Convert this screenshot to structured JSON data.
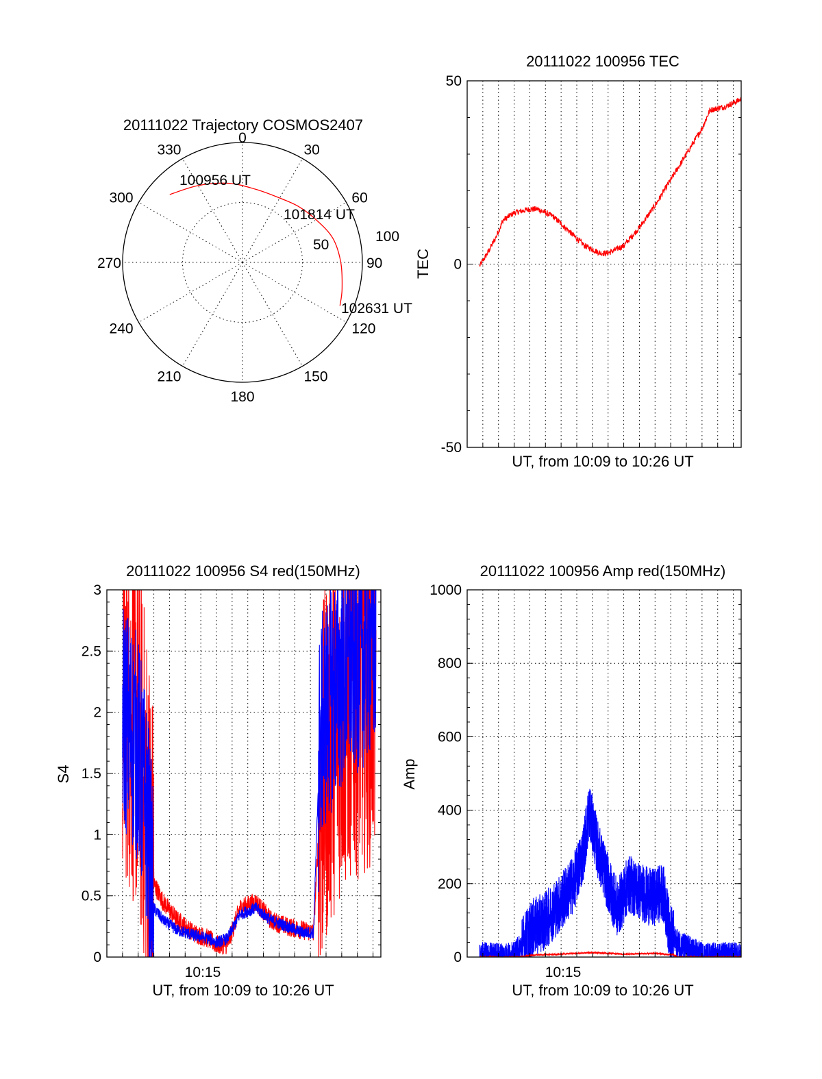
{
  "chart_data": [
    {
      "type": "polar",
      "title": "20111022 Trajectory COSMOS2407",
      "azimuth_labels": [
        "0",
        "30",
        "60",
        "90",
        "120",
        "150",
        "180",
        "210",
        "240",
        "270",
        "300",
        "330"
      ],
      "radius_labels": [
        "50",
        "100"
      ],
      "colors": {
        "track": "#ff0000"
      },
      "track": {
        "points": [
          {
            "az": 313,
            "zenith": 83
          },
          {
            "az": 330,
            "zenith": 74
          },
          {
            "az": 350,
            "zenith": 67
          },
          {
            "az": 10,
            "zenith": 62
          },
          {
            "az": 30,
            "zenith": 62
          },
          {
            "az": 45,
            "zenith": 66
          },
          {
            "az": 60,
            "zenith": 71
          },
          {
            "az": 75,
            "zenith": 78
          },
          {
            "az": 90,
            "zenith": 82
          },
          {
            "az": 105,
            "zenith": 86
          },
          {
            "az": 114,
            "zenith": 89
          }
        ],
        "annotations": [
          {
            "text": "100956 UT",
            "point": "start"
          },
          {
            "text": "101814 UT",
            "point": "middle"
          },
          {
            "text": "102631 UT",
            "point": "end"
          }
        ]
      }
    },
    {
      "type": "line",
      "title": "20111022 100956 TEC",
      "xlabel": "UT, from 10:09 to 10:26 UT",
      "ylabel": "TEC",
      "ylim": [
        -50,
        50
      ],
      "yticks": [
        "-50",
        "0",
        "50"
      ],
      "xlim_minutes": [
        9.0,
        26.5
      ],
      "grid": true,
      "series": [
        {
          "color": "#ff0000",
          "noise": 0.8,
          "x": [
            9.8,
            10.3,
            10.8,
            11.3,
            12.0,
            13.0,
            13.5,
            14.5,
            15.5,
            16.5,
            17.5,
            18.0,
            19.0,
            20.0,
            21.0,
            22.0,
            23.0,
            24.0,
            24.5,
            25.5,
            26.5
          ],
          "y": [
            -0.5,
            3,
            7,
            12,
            14,
            15,
            15,
            13,
            9,
            5,
            3,
            3,
            5,
            10,
            16,
            23,
            30,
            37,
            42,
            43,
            45
          ]
        }
      ]
    },
    {
      "type": "line",
      "title": "20111022 100956 S4 red(150MHz)",
      "xlabel": "UT, from 10:09 to 10:26 UT",
      "ylabel": "S4",
      "ylim": [
        0,
        3
      ],
      "yticks": [
        "0",
        "0.5",
        "1",
        "1.5",
        "2",
        "2.5",
        "3"
      ],
      "xtick_labels": [
        {
          "x": 15,
          "label": "10:15"
        }
      ],
      "xlim_minutes": [
        9.0,
        26.5
      ],
      "grid": true,
      "series": [
        {
          "color": "#ff0000",
          "noise": 0.08,
          "x": [
            10.0,
            11.0,
            11.6,
            12.0,
            12.6,
            13.5,
            14.5,
            15.5,
            16.0,
            16.7,
            17.5,
            18.5,
            19.5,
            20.5,
            21.5,
            22.2,
            22.6,
            23.0,
            23.6,
            24.5,
            25.5,
            26.2
          ],
          "y": [
            2.2,
            1.8,
            1.2,
            0.6,
            0.45,
            0.3,
            0.2,
            0.15,
            0.1,
            0.1,
            0.4,
            0.45,
            0.3,
            0.25,
            0.22,
            0.2,
            1.2,
            1.6,
            1.9,
            2.1,
            2.2,
            2.3
          ]
        },
        {
          "color": "#0000ff",
          "noise": 0.05,
          "x": [
            10.0,
            11.0,
            11.6,
            12.0,
            12.6,
            13.5,
            14.5,
            15.5,
            16.0,
            16.7,
            17.5,
            18.5,
            19.5,
            20.5,
            21.5,
            22.2,
            22.6,
            23.0,
            23.6,
            24.5,
            25.5,
            26.2
          ],
          "y": [
            2.0,
            1.7,
            1.1,
            0.4,
            0.3,
            0.22,
            0.18,
            0.15,
            0.12,
            0.15,
            0.35,
            0.4,
            0.3,
            0.25,
            0.2,
            0.2,
            1.8,
            2.0,
            2.2,
            2.4,
            2.5,
            2.6
          ]
        }
      ]
    },
    {
      "type": "line",
      "title": "20111022 100956 Amp red(150MHz)",
      "xlabel": "UT, from 10:09 to 10:26 UT",
      "ylabel": "Amp",
      "ylim": [
        0,
        1000
      ],
      "yticks": [
        "0",
        "200",
        "400",
        "600",
        "800",
        "1000"
      ],
      "xtick_labels": [
        {
          "x": 15,
          "label": "10:15"
        }
      ],
      "xlim_minutes": [
        9.0,
        26.5
      ],
      "grid": true,
      "series": [
        {
          "color": "#0000ff",
          "noise": 40,
          "x": [
            9.8,
            12.0,
            12.6,
            13.2,
            14.0,
            15.0,
            15.8,
            16.4,
            16.8,
            17.3,
            18.0,
            18.6,
            19.3,
            20.0,
            20.8,
            21.5,
            21.9,
            22.3,
            24.0,
            26.5
          ],
          "y": [
            1,
            1,
            40,
            80,
            100,
            150,
            200,
            280,
            400,
            300,
            200,
            130,
            200,
            180,
            160,
            180,
            80,
            40,
            1,
            1
          ]
        },
        {
          "color": "#ff0000",
          "noise": 2,
          "x": [
            9.8,
            12.3,
            13.0,
            15.0,
            17.0,
            19.0,
            21.0,
            22.2,
            22.4,
            26.5
          ],
          "y": [
            0,
            0,
            5,
            8,
            12,
            8,
            10,
            6,
            0,
            0
          ]
        }
      ]
    }
  ]
}
